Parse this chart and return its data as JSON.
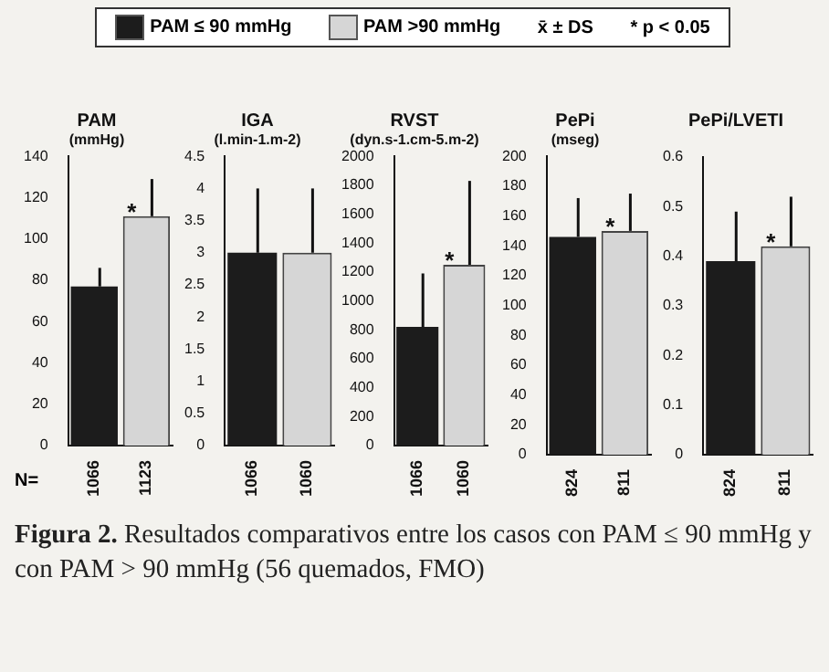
{
  "chart_data": [
    {
      "type": "bar",
      "title": "PAM",
      "subtitle": "(mmHg)",
      "categories": [
        "1066",
        "1123"
      ],
      "legend": "top",
      "grid": false,
      "series": [
        {
          "name": "PAM ≤ 90 mmHg",
          "color": "#1c1c1c",
          "values": [
            77,
            null
          ],
          "errors": [
            [
              77,
              86
            ],
            null
          ]
        },
        {
          "name": "PAM >90 mmHg",
          "color": "#d6d6d6",
          "values": [
            null,
            111
          ],
          "errors": [
            null,
            [
              111,
              129
            ]
          ]
        }
      ],
      "ylim": [
        0,
        140
      ],
      "yticks": [
        0,
        20,
        40,
        60,
        80,
        100,
        120,
        140
      ],
      "annotations": [
        "x̄ ± DS",
        "* p < 0.05",
        "N=",
        "Figura 2. Resultados comparativos entre los casos con PAM ≤ 90 mmHg y con PAM > 90 mmHg (56 quemados, FMO)",
        {
          "text": "*",
          "x": "1123",
          "y": 111
        }
      ]
    },
    {
      "type": "bar",
      "title": "IGA",
      "subtitle": "(l.min-1.m-2)",
      "categories": [
        "1066",
        "1060"
      ],
      "grid": false,
      "series": [
        {
          "color": "#1c1c1c",
          "values": [
            3.0,
            null
          ],
          "errors": [
            [
              3.0,
              4.0
            ],
            null
          ]
        },
        {
          "color": "#d6d6d6",
          "values": [
            null,
            3.0
          ],
          "errors": [
            null,
            [
              3.0,
              4.0
            ]
          ]
        }
      ],
      "ylim": [
        0,
        4.5
      ],
      "yticks": [
        0,
        0.5,
        1,
        1.5,
        2,
        2.5,
        3,
        3.5,
        4,
        4.5
      ]
    },
    {
      "type": "bar",
      "title": "RVST",
      "subtitle": "(dyn.s-1.cm-5.m-2)",
      "categories": [
        "1066",
        "1060"
      ],
      "grid": false,
      "series": [
        {
          "color": "#1c1c1c",
          "values": [
            820,
            null
          ],
          "errors": [
            [
              820,
              1190
            ],
            null
          ]
        },
        {
          "color": "#d6d6d6",
          "values": [
            null,
            1250
          ],
          "errors": [
            null,
            [
              1250,
              1830
            ]
          ]
        }
      ],
      "ylim": [
        0,
        2000
      ],
      "yticks": [
        0,
        200,
        400,
        600,
        800,
        1000,
        1200,
        1400,
        1600,
        1800,
        2000
      ],
      "annotations": [
        {
          "text": "*",
          "x": "1060",
          "y": 1250
        }
      ]
    },
    {
      "type": "bar",
      "title": "PePi",
      "subtitle": "(mseg)",
      "categories": [
        "824",
        "811"
      ],
      "grid": false,
      "series": [
        {
          "color": "#1c1c1c",
          "values": [
            146,
            null
          ],
          "errors": [
            [
              146,
              172
            ],
            null
          ]
        },
        {
          "color": "#d6d6d6",
          "values": [
            null,
            150
          ],
          "errors": [
            null,
            [
              150,
              175
            ]
          ]
        }
      ],
      "ylim": [
        0,
        200
      ],
      "yticks": [
        0,
        20,
        40,
        60,
        80,
        100,
        120,
        140,
        160,
        180,
        200
      ],
      "annotations": [
        {
          "text": "*",
          "x": "811",
          "y": 150
        }
      ]
    },
    {
      "type": "bar",
      "title": "PePi/LVETI",
      "categories": [
        "824",
        "811"
      ],
      "grid": false,
      "series": [
        {
          "color": "#1c1c1c",
          "values": [
            0.39,
            null
          ],
          "errors": [
            [
              0.39,
              0.49
            ],
            null
          ]
        },
        {
          "color": "#d6d6d6",
          "values": [
            null,
            0.42
          ],
          "errors": [
            null,
            [
              0.42,
              0.52
            ]
          ]
        }
      ],
      "ylim": [
        0,
        0.6
      ],
      "yticks": [
        0,
        0.1,
        0.2,
        0.3,
        0.4,
        0.5,
        0.6
      ],
      "annotations": [
        {
          "text": "*",
          "x": "811",
          "y": 0.42
        }
      ]
    }
  ]
}
